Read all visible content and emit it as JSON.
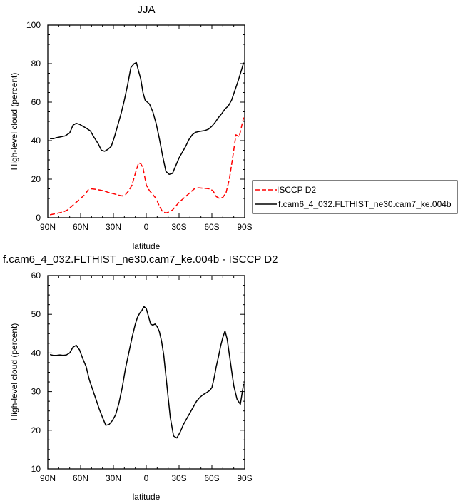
{
  "chart_data": [
    {
      "type": "line",
      "title": "JJA",
      "xlabel": "latitude",
      "ylabel": "High-level cloud (percent)",
      "xlim": [
        90,
        -90
      ],
      "ylim": [
        0,
        100
      ],
      "xticks": [
        {
          "v": 90,
          "label": "90N"
        },
        {
          "v": 60,
          "label": "60N"
        },
        {
          "v": 30,
          "label": "30N"
        },
        {
          "v": 0,
          "label": "0"
        },
        {
          "v": -30,
          "label": "30S"
        },
        {
          "v": -60,
          "label": "60S"
        },
        {
          "v": -90,
          "label": "90S"
        }
      ],
      "yticks": [
        0,
        20,
        40,
        60,
        80,
        100
      ],
      "legend": "right",
      "series": [
        {
          "name": "ISCCP D2",
          "color": "#ff0000",
          "dash": "dashed",
          "x": [
            88,
            84,
            80,
            76,
            72,
            68,
            64,
            60,
            56,
            53,
            50,
            46,
            42,
            38,
            34,
            30,
            26,
            22,
            19,
            16,
            13,
            10,
            7,
            5,
            3,
            0,
            -3,
            -6,
            -9,
            -12,
            -15,
            -18,
            -21,
            -24,
            -27,
            -30,
            -33,
            -36,
            -40,
            -44,
            -48,
            -52,
            -55,
            -58,
            -61,
            -64,
            -67,
            -70,
            -73,
            -76,
            -79,
            -82,
            -85,
            -89
          ],
          "y": [
            1.5,
            2,
            2.5,
            3,
            4,
            6,
            8,
            10,
            12,
            14.5,
            15,
            14.7,
            14.3,
            13.8,
            13,
            12.5,
            11.8,
            11.3,
            12,
            14,
            17,
            23,
            28.5,
            28,
            26,
            17,
            14,
            12,
            10,
            6,
            3,
            2.5,
            3,
            4,
            6,
            8,
            9.5,
            11,
            13,
            15,
            15.5,
            15.3,
            15.2,
            15,
            14,
            11,
            10,
            10.5,
            13,
            20,
            31,
            43,
            42,
            52
          ]
        },
        {
          "name": "f.cam6_4_032.FLTHIST_ne30.cam7_ke.004b",
          "color": "#000000",
          "dash": "solid",
          "x": [
            88,
            85,
            82,
            78,
            74,
            70,
            67,
            64,
            61,
            58,
            55,
            51,
            48,
            44,
            41,
            38,
            35,
            32,
            29,
            26,
            23,
            20,
            17,
            14,
            11,
            9,
            7,
            5,
            3,
            1,
            -1,
            -3,
            -6,
            -9,
            -12,
            -15,
            -18,
            -21,
            -24,
            -27,
            -30,
            -33,
            -36,
            -39,
            -42,
            -45,
            -48,
            -51,
            -54,
            -57,
            -60,
            -63,
            -66,
            -69,
            -72,
            -75,
            -78,
            -81,
            -84,
            -87,
            -89
          ],
          "y": [
            41,
            41,
            41.5,
            42,
            42.5,
            44,
            48,
            49,
            48.5,
            47.5,
            46.5,
            45,
            42,
            38.5,
            35,
            34.5,
            35.5,
            37,
            42,
            48,
            54,
            61,
            69,
            78,
            80,
            80.5,
            76,
            72,
            65,
            61,
            60,
            59,
            55,
            49,
            41,
            32,
            24,
            22.5,
            23,
            27,
            31,
            34,
            37,
            40.5,
            43,
            44.3,
            44.7,
            45,
            45.3,
            46,
            47.5,
            49.5,
            52,
            54,
            56.5,
            58,
            61,
            66,
            71,
            76.5,
            80.5
          ]
        }
      ]
    },
    {
      "type": "line",
      "title": "f.cam6_4_032.FLTHIST_ne30.cam7_ke.004b - ISCCP D2",
      "xlabel": "latitude",
      "ylabel": "High-level cloud (percent)",
      "xlim": [
        90,
        -90
      ],
      "ylim": [
        10,
        60
      ],
      "xticks": [
        {
          "v": 90,
          "label": "90N"
        },
        {
          "v": 60,
          "label": "60N"
        },
        {
          "v": 30,
          "label": "30N"
        },
        {
          "v": 0,
          "label": "0"
        },
        {
          "v": -30,
          "label": "30S"
        },
        {
          "v": -60,
          "label": "60S"
        },
        {
          "v": -90,
          "label": "90S"
        }
      ],
      "yticks": [
        10,
        20,
        30,
        40,
        50,
        60
      ],
      "series": [
        {
          "color": "#000000",
          "dash": "solid",
          "x": [
            88,
            85,
            82,
            79,
            76,
            73,
            70,
            67,
            64,
            61,
            58,
            55,
            52,
            49,
            46,
            43,
            40,
            37,
            34,
            31,
            28,
            25,
            22,
            19,
            16,
            13,
            10,
            8,
            6,
            4,
            2,
            0,
            -2,
            -4,
            -6,
            -8,
            -10,
            -12,
            -14,
            -16,
            -18,
            -20,
            -22,
            -25,
            -28,
            -31,
            -34,
            -37,
            -40,
            -43,
            -46,
            -49,
            -52,
            -55,
            -58,
            -60,
            -62,
            -64,
            -66,
            -68,
            -70,
            -72,
            -74,
            -77,
            -80,
            -83,
            -86,
            -89
          ],
          "y": [
            39.6,
            39.4,
            39.4,
            39.5,
            39.4,
            39.5,
            40,
            41.5,
            42,
            40.8,
            38.5,
            36.5,
            33,
            30.5,
            28,
            25.5,
            23.3,
            21.3,
            21.5,
            22.5,
            24,
            27,
            31,
            36,
            40,
            44,
            47.5,
            49.2,
            50.3,
            51,
            52,
            51.5,
            49.5,
            47.5,
            47.2,
            47.5,
            46.8,
            45.5,
            43,
            39.5,
            34,
            28.5,
            23.3,
            18.5,
            18,
            19.5,
            21.5,
            23,
            24.5,
            26,
            27.5,
            28.5,
            29.2,
            29.7,
            30.3,
            31,
            33.5,
            36.5,
            39,
            41.8,
            44,
            45.7,
            43.5,
            37.5,
            31.5,
            28,
            26.7,
            32
          ]
        }
      ]
    }
  ]
}
